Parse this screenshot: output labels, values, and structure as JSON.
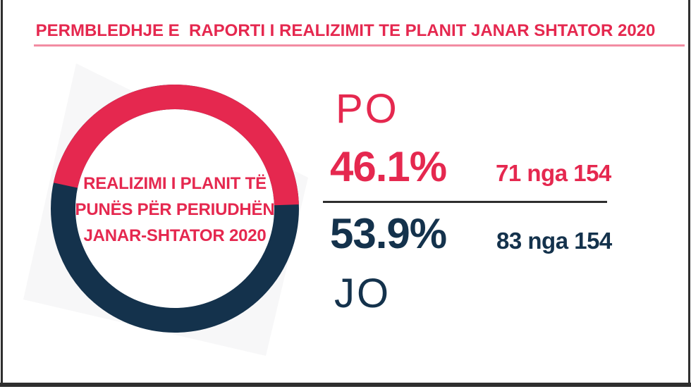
{
  "theme": {
    "red": "#E5284F",
    "navy": "#14324C",
    "underline_pink": "#F28CA2",
    "bg_square": "#F7F7F8",
    "frame_dark": "#2E2E2E",
    "page_bg": "#FFFFFF"
  },
  "header": {
    "title": "PERMBLEDHJE E  RAPORTI I REALIZIMIT TE PLANIT JANAR SHTATOR 2020"
  },
  "donut": {
    "center_label_lines": [
      "REALIZIMI I PLANIT TË",
      "PUNËS PËR PERIUDHËN",
      "JANAR-SHTATOR 2020"
    ]
  },
  "stats": {
    "yes": {
      "label": "PO",
      "percent": "46.1%",
      "count": "71 nga 154"
    },
    "no": {
      "label": "JO",
      "percent": "53.9%",
      "count": "83 nga 154"
    }
  },
  "chart_data": {
    "type": "pie",
    "style": "donut",
    "title": "REALIZIMI I PLANIT TË PUNËS PËR PERIUDHËN JANAR-SHTATOR 2020",
    "categories": [
      "PO",
      "JO"
    ],
    "values": [
      46.1,
      53.9
    ],
    "counts": [
      71,
      83
    ],
    "total": 154,
    "colors": [
      "#E5284F",
      "#14324C"
    ],
    "end_anchor_deg": 358,
    "legend_position": "right"
  }
}
